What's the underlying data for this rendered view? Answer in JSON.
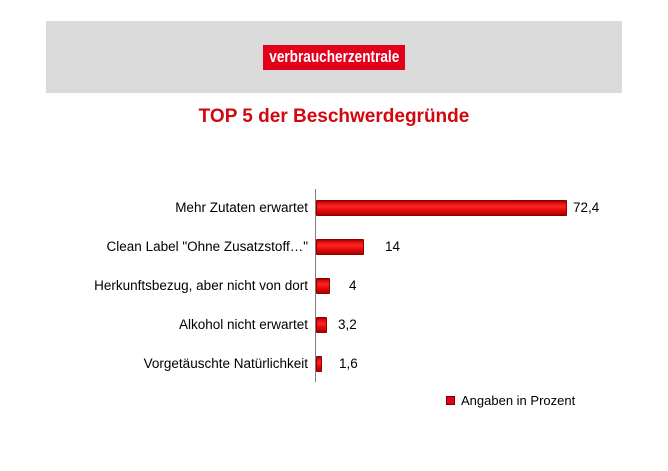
{
  "banner": {
    "logo_text": "verbraucherzentrale"
  },
  "legend": {
    "label": "Angaben in Prozent"
  },
  "colors": {
    "banner_bg": "#dadada",
    "logo_bg": "#e2001a",
    "logo_text": "#ffffff",
    "title": "#d2070f",
    "bar": "#ee0f0f",
    "bar_border": "#8b0000",
    "axis": "#7f7f7f",
    "legend_marker": "#e2001a"
  },
  "chart_data": {
    "type": "bar",
    "orientation": "horizontal",
    "title": "TOP 5 der Beschwerdegründe",
    "categories": [
      "Mehr Zutaten erwartet",
      "Clean Label \"Ohne Zusatzstoff…\"",
      "Herkunftsbezug, aber nicht von dort",
      "Alkohol nicht erwartet",
      "Vorgetäuschte Natürlichkeit"
    ],
    "values": [
      72.4,
      14,
      4,
      3.2,
      1.6
    ],
    "value_labels": [
      "72,4",
      "14",
      "4",
      "3,2",
      "1,6"
    ],
    "xlabel": "",
    "ylabel": "",
    "xlim": [
      0,
      80
    ],
    "grid": false,
    "data_labels": "outside-end",
    "legend": [
      "Angaben in Prozent"
    ],
    "legend_position": "bottom-right"
  }
}
